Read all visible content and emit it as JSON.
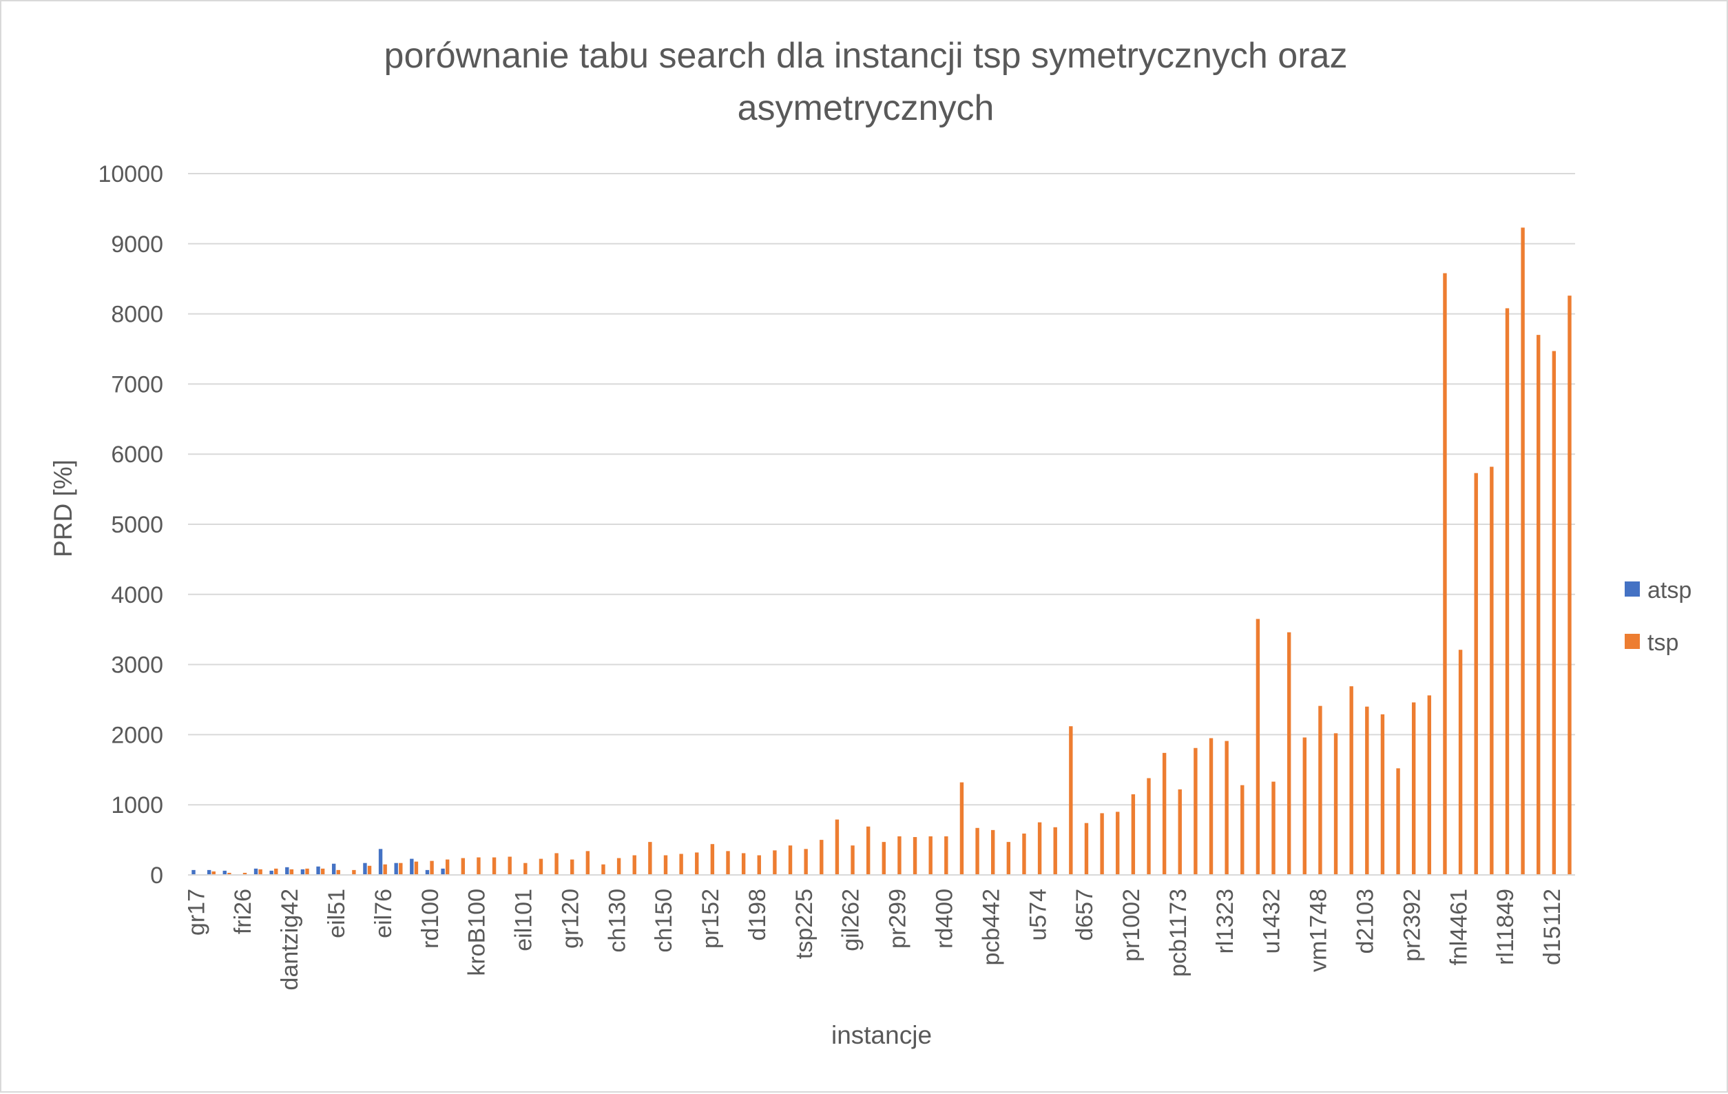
{
  "chart_data": {
    "type": "bar",
    "title_lines": [
      "porównanie tabu search dla instancji tsp symetrycznych oraz",
      "asymetrycznych"
    ],
    "xlabel": "instancje",
    "ylabel": "PRD [%]",
    "ylim": [
      0,
      10000
    ],
    "yticks": [
      0,
      1000,
      2000,
      3000,
      4000,
      5000,
      6000,
      7000,
      8000,
      9000,
      10000
    ],
    "grid": true,
    "legend_position": "right",
    "colors": {
      "atsp": "#4472c4",
      "tsp": "#ed7d31",
      "grid": "#d9d9d9",
      "text": "#595959"
    },
    "category_count": 89,
    "labeled_categories": [
      {
        "index": 0,
        "label": "gr17"
      },
      {
        "index": 3,
        "label": "fri26"
      },
      {
        "index": 6,
        "label": "dantzig42"
      },
      {
        "index": 9,
        "label": "eil51"
      },
      {
        "index": 12,
        "label": "eil76"
      },
      {
        "index": 15,
        "label": "rd100"
      },
      {
        "index": 18,
        "label": "kroB100"
      },
      {
        "index": 21,
        "label": "eil101"
      },
      {
        "index": 24,
        "label": "gr120"
      },
      {
        "index": 27,
        "label": "ch130"
      },
      {
        "index": 30,
        "label": "ch150"
      },
      {
        "index": 33,
        "label": "pr152"
      },
      {
        "index": 36,
        "label": "d198"
      },
      {
        "index": 39,
        "label": "tsp225"
      },
      {
        "index": 42,
        "label": "gil262"
      },
      {
        "index": 45,
        "label": "pr299"
      },
      {
        "index": 48,
        "label": "rd400"
      },
      {
        "index": 51,
        "label": "pcb442"
      },
      {
        "index": 54,
        "label": "u574"
      },
      {
        "index": 57,
        "label": "d657"
      },
      {
        "index": 60,
        "label": "pr1002"
      },
      {
        "index": 63,
        "label": "pcb1173"
      },
      {
        "index": 66,
        "label": "rl1323"
      },
      {
        "index": 69,
        "label": "u1432"
      },
      {
        "index": 72,
        "label": "vm1748"
      },
      {
        "index": 75,
        "label": "d2103"
      },
      {
        "index": 78,
        "label": "pr2392"
      },
      {
        "index": 81,
        "label": "fnl4461"
      },
      {
        "index": 84,
        "label": "rl11849"
      },
      {
        "index": 87,
        "label": "d15112"
      }
    ],
    "series": [
      {
        "name": "atsp",
        "values": [
          70,
          70,
          60,
          0,
          90,
          60,
          110,
          80,
          120,
          160,
          0,
          170,
          370,
          170,
          230,
          70,
          90,
          null,
          null,
          null,
          null,
          null,
          null,
          null,
          null,
          null,
          null,
          null,
          null,
          null,
          null,
          null,
          null,
          null,
          null,
          null,
          null,
          null,
          null,
          null,
          null,
          null,
          null,
          null,
          null,
          null,
          null,
          null,
          null,
          null,
          null,
          null,
          null,
          null,
          null,
          null,
          null,
          null,
          null,
          null,
          null,
          null,
          null,
          null,
          null,
          null,
          null,
          null,
          null,
          null,
          null,
          null,
          null,
          null,
          null,
          null,
          null,
          null,
          null,
          null,
          null,
          null,
          null,
          null,
          null,
          null,
          null,
          null,
          null
        ]
      },
      {
        "name": "tsp",
        "values": [
          0,
          50,
          30,
          30,
          80,
          90,
          80,
          90,
          90,
          70,
          70,
          130,
          150,
          170,
          190,
          200,
          220,
          240,
          250,
          250,
          260,
          170,
          230,
          310,
          220,
          340,
          150,
          240,
          280,
          470,
          280,
          300,
          320,
          440,
          340,
          310,
          280,
          350,
          420,
          370,
          500,
          790,
          420,
          690,
          470,
          550,
          540,
          550,
          550,
          1320,
          670,
          640,
          470,
          590,
          750,
          680,
          2120,
          740,
          880,
          900,
          1150,
          1380,
          1740,
          1220,
          1810,
          1950,
          1910,
          1280,
          3650,
          1330,
          3460,
          1960,
          2410,
          2020,
          2690,
          2400,
          2290,
          1520,
          2460,
          2560,
          8580,
          3210,
          5730,
          5820,
          8080,
          9230,
          7700,
          7470,
          8260
        ]
      }
    ]
  }
}
